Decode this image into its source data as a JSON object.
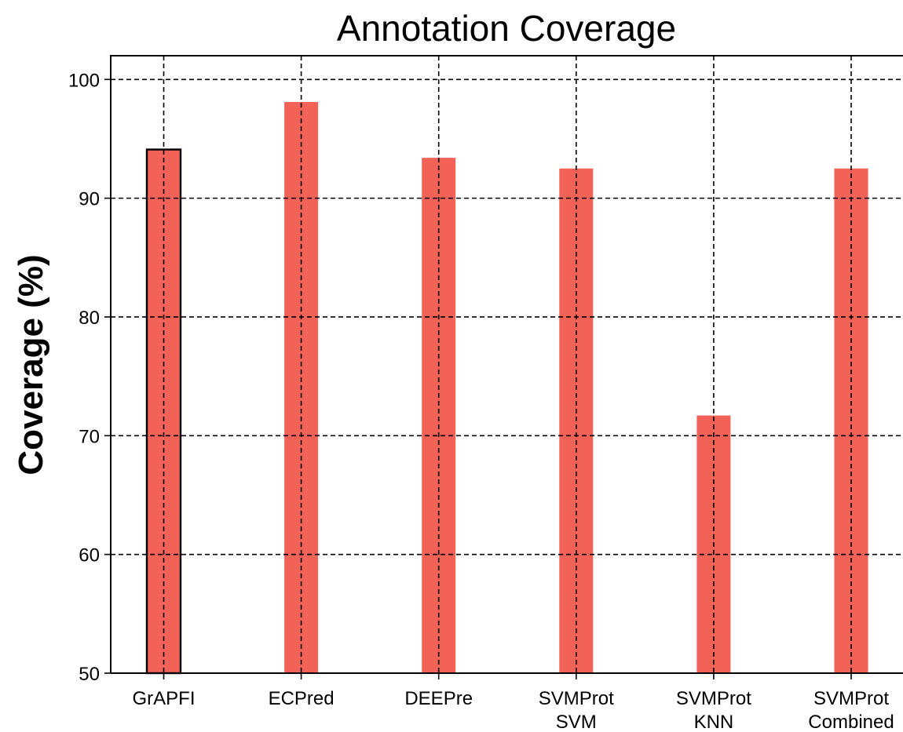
{
  "chart_data": {
    "type": "bar",
    "title": "Annotation Coverage",
    "xlabel": "",
    "ylabel": "Coverage (%)",
    "ylim": [
      50,
      102
    ],
    "yticks": [
      50,
      60,
      70,
      80,
      90,
      100
    ],
    "grid": true,
    "bar_color": "#f26257",
    "highlight_edge_color": "#000000",
    "categories": [
      [
        "GrAPFI"
      ],
      [
        "ECPred"
      ],
      [
        "DEEPre"
      ],
      [
        "SVMProt",
        "SVM"
      ],
      [
        "SVMProt",
        "KNN"
      ],
      [
        "SVMProt",
        "Combined"
      ]
    ],
    "values": [
      94.1,
      98.1,
      93.4,
      92.5,
      71.7,
      92.5
    ],
    "highlighted": [
      0
    ]
  }
}
